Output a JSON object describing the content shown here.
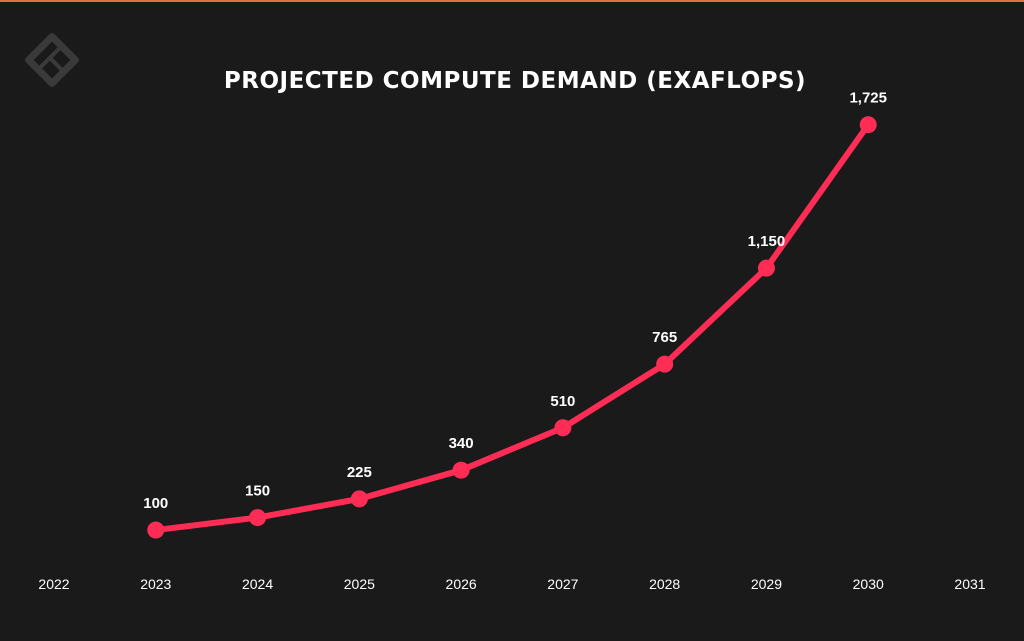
{
  "logo": {
    "icon": "brand-logo-icon",
    "color": "#3a3a3a"
  },
  "chart_data": {
    "type": "line",
    "title": "PROJECTED COMPUTE DEMAND (EXAFLOPS)",
    "xlabel": "",
    "ylabel": "",
    "x_ticks": [
      "2022",
      "2023",
      "2024",
      "2025",
      "2026",
      "2027",
      "2028",
      "2029",
      "2030",
      "2031"
    ],
    "series": [
      {
        "x": [
          "2023",
          "2024",
          "2025",
          "2026",
          "2027",
          "2028",
          "2029",
          "2030"
        ],
        "values": [
          100,
          150,
          225,
          340,
          510,
          765,
          1150,
          1725
        ],
        "labels": [
          "100",
          "150",
          "225",
          "340",
          "510",
          "765",
          "1,150",
          "1,725"
        ],
        "color": "#ff2d55"
      }
    ],
    "ylim": [
      0,
      1800
    ],
    "grid": false,
    "legend": "none"
  }
}
